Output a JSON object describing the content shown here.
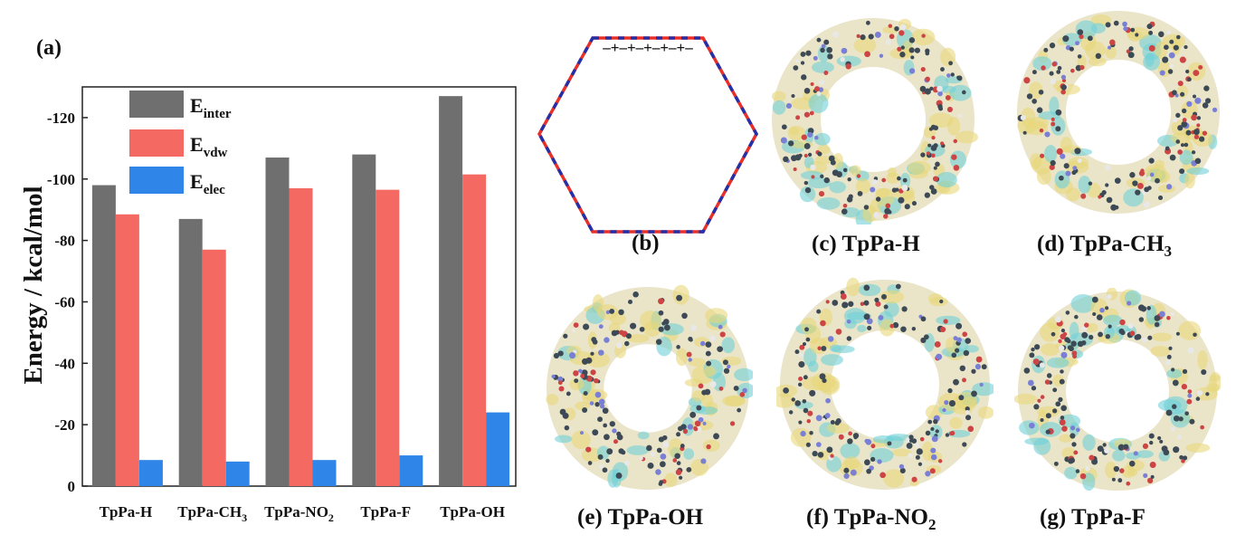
{
  "figure": {
    "panel_a_label": "(a)",
    "panel_b_label": "(b)",
    "captions": {
      "c": "(c) TpPa-H",
      "d_prefix": "(d) TpPa-CH",
      "d_sub": "3",
      "e": "(e) TpPa-OH",
      "f_prefix": "(f) TpPa-NO",
      "f_sub": "2",
      "g": "(g) TpPa-F"
    },
    "hexagon_marks": "–+–+–+–+–+–",
    "colors": {
      "inter": "#6f6f6f",
      "vdw": "#f46a63",
      "elec": "#2f86e8",
      "hex_red": "#e8302a",
      "hex_blue": "#2430a8",
      "iso_yellow": "#e8d77a",
      "iso_cyan": "#6fd0d8",
      "atom_dark": "#3d4a55"
    }
  },
  "chart_data": {
    "type": "bar",
    "ylabel": "Energy / kcal/mol",
    "y_axis_inverted": true,
    "ylim": [
      0,
      -130
    ],
    "yticks": [
      0,
      -20,
      -40,
      -60,
      -80,
      -100,
      -120
    ],
    "legend_position": "top-left",
    "categories": [
      {
        "main": "TpPa-H",
        "sub": ""
      },
      {
        "main": "TpPa-CH",
        "sub": "3"
      },
      {
        "main": "TpPa-NO",
        "sub": "2"
      },
      {
        "main": "TpPa-F",
        "sub": ""
      },
      {
        "main": "TpPa-OH",
        "sub": ""
      }
    ],
    "series": [
      {
        "name": "E",
        "sub": "inter",
        "values": [
          -98,
          -87,
          -107,
          -108,
          -127
        ]
      },
      {
        "name": "E",
        "sub": "vdw",
        "values": [
          -88.5,
          -77,
          -97,
          -96.5,
          -101.5
        ]
      },
      {
        "name": "E",
        "sub": "elec",
        "values": [
          -8.5,
          -8,
          -8.5,
          -10,
          -24
        ]
      }
    ]
  }
}
